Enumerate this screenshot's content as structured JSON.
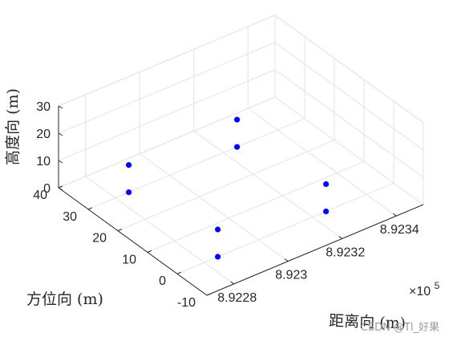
{
  "chart_data": {
    "type": "scatter",
    "title": "",
    "view": "3d",
    "xlabel": "距离向 (m)",
    "ylabel": "方位向 (m)",
    "zlabel": "高度向 (m)",
    "x_exponent_label": "×10",
    "x_exponent_power": "5",
    "x_ticks": [
      8.9228,
      8.923,
      8.9232,
      8.9234
    ],
    "x_tick_labels": [
      "8.9228",
      "8.923",
      "8.9232",
      "8.9234"
    ],
    "y_ticks": [
      -10,
      0,
      10,
      20,
      30,
      40
    ],
    "y_tick_labels": [
      "-10",
      "0",
      "10",
      "20",
      "30",
      "40"
    ],
    "z_ticks": [
      0,
      10,
      20,
      30
    ],
    "z_tick_labels": [
      "0",
      "10",
      "20",
      "30"
    ],
    "xlim": [
      8.9227,
      8.9235
    ],
    "ylim": [
      -10,
      40
    ],
    "zlim": [
      0,
      30
    ],
    "grid": true,
    "marker_color": "#0000ff",
    "series": [
      {
        "points": [
          {
            "x": 8.92285,
            "y": 0,
            "z": 0
          },
          {
            "x": 8.92285,
            "y": 0,
            "z": 10
          },
          {
            "x": 8.92285,
            "y": 30,
            "z": 0
          },
          {
            "x": 8.92285,
            "y": 30,
            "z": 10
          },
          {
            "x": 8.92325,
            "y": 0,
            "z": 0
          },
          {
            "x": 8.92325,
            "y": 0,
            "z": 10
          },
          {
            "x": 8.92325,
            "y": 30,
            "z": 0
          },
          {
            "x": 8.92325,
            "y": 30,
            "z": 10
          }
        ]
      }
    ]
  },
  "watermark": "CSDN @Tl_好果"
}
